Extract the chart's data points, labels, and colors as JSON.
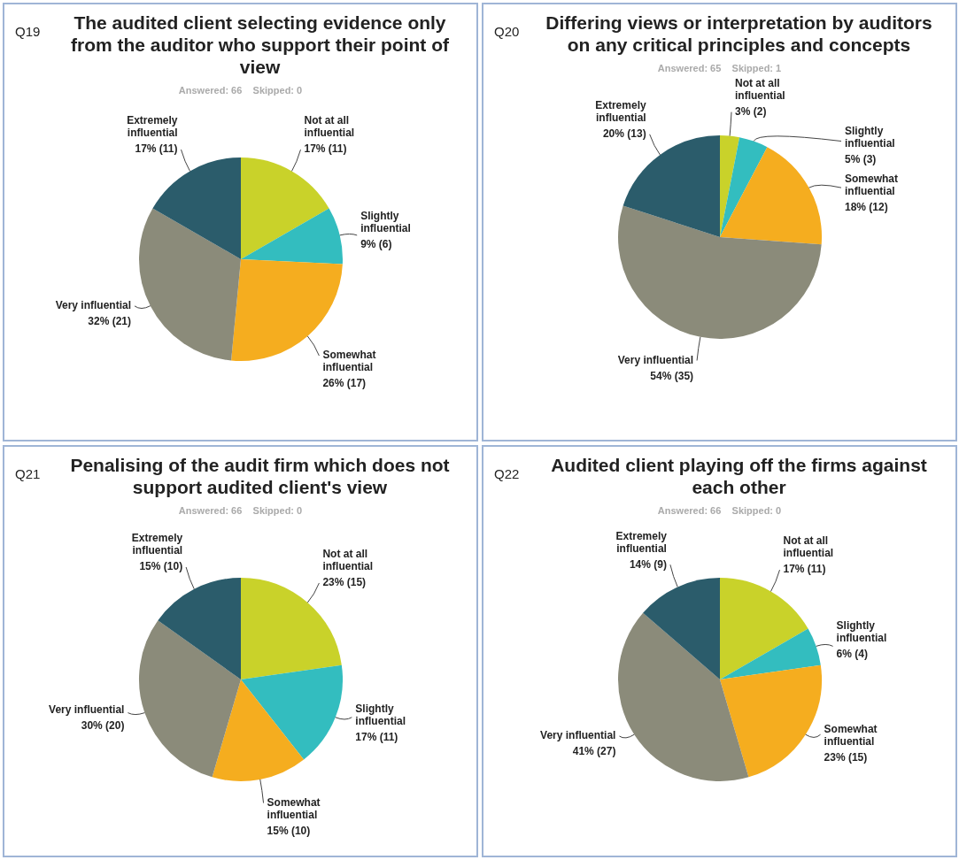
{
  "chart_data": [
    {
      "type": "pie",
      "title": "The audited client selecting evidence only from the auditor who support their point of view",
      "subtitle": "Answered: 66    Skipped: 0",
      "annotations": [
        "Q19"
      ],
      "categories": [
        "Not at all influential",
        "Slightly influential",
        "Somewhat influential",
        "Very influential",
        "Extremely influential"
      ],
      "values": [
        11,
        6,
        17,
        21,
        11
      ],
      "value_labels": [
        "17% (11)",
        "9% (6)",
        "26% (17)",
        "32% (21)",
        "17% (11)"
      ],
      "colors": [
        "#c9d22a",
        "#33bdbf",
        "#f5ad1f",
        "#8b8b7a",
        "#2b5c6b"
      ]
    },
    {
      "type": "pie",
      "title": "Differing views or interpretation by auditors on any critical principles and concepts",
      "subtitle": "Answered: 65    Skipped: 1",
      "annotations": [
        "Q20"
      ],
      "categories": [
        "Not at all influential",
        "Slightly influential",
        "Somewhat influential",
        "Very influential",
        "Extremely influential"
      ],
      "values": [
        2,
        3,
        12,
        35,
        13
      ],
      "value_labels": [
        "3% (2)",
        "5% (3)",
        "18% (12)",
        "54% (35)",
        "20% (13)"
      ],
      "colors": [
        "#c9d22a",
        "#33bdbf",
        "#f5ad1f",
        "#8b8b7a",
        "#2b5c6b"
      ]
    },
    {
      "type": "pie",
      "title": "Penalising of the audit firm which does not support audited client's view",
      "subtitle": "Answered: 66    Skipped: 0",
      "annotations": [
        "Q21"
      ],
      "categories": [
        "Not at all influential",
        "Slightly influential",
        "Somewhat influential",
        "Very influential",
        "Extremely influential"
      ],
      "values": [
        15,
        11,
        10,
        20,
        10
      ],
      "value_labels": [
        "23% (15)",
        "17% (11)",
        "15% (10)",
        "30% (20)",
        "15% (10)"
      ],
      "colors": [
        "#c9d22a",
        "#33bdbf",
        "#f5ad1f",
        "#8b8b7a",
        "#2b5c6b"
      ]
    },
    {
      "type": "pie",
      "title": "Audited client playing off the firms against each other",
      "subtitle": "Answered: 66    Skipped: 0",
      "annotations": [
        "Q22"
      ],
      "categories": [
        "Not at all influential",
        "Slightly influential",
        "Somewhat influential",
        "Very influential",
        "Extremely influential"
      ],
      "values": [
        11,
        4,
        15,
        27,
        9
      ],
      "value_labels": [
        "17% (11)",
        "6% (4)",
        "23% (15)",
        "41% (27)",
        "14% (9)"
      ],
      "colors": [
        "#c9d22a",
        "#33bdbf",
        "#f5ad1f",
        "#8b8b7a",
        "#2b5c6b"
      ]
    }
  ]
}
